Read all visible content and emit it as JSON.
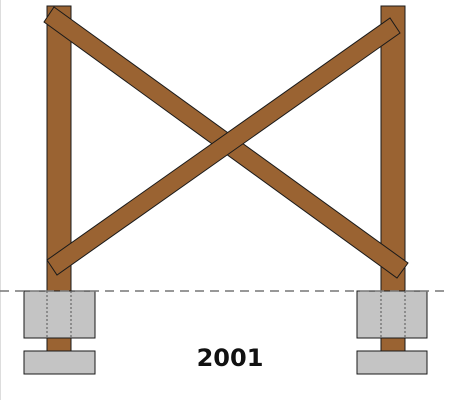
{
  "diagram": {
    "year_label": "2001",
    "colors": {
      "wood": "#9a6332",
      "concrete": "#c4c4c4",
      "outline": "#1a1a1a",
      "ground_line": "#777777"
    },
    "components": {
      "posts": [
        "left-post",
        "right-post"
      ],
      "braces": [
        "diagonal-brace-down",
        "diagonal-brace-up"
      ],
      "footings": [
        "left-footing",
        "right-footing"
      ],
      "bases": [
        "left-base",
        "right-base"
      ],
      "ground": "ground-line"
    }
  }
}
